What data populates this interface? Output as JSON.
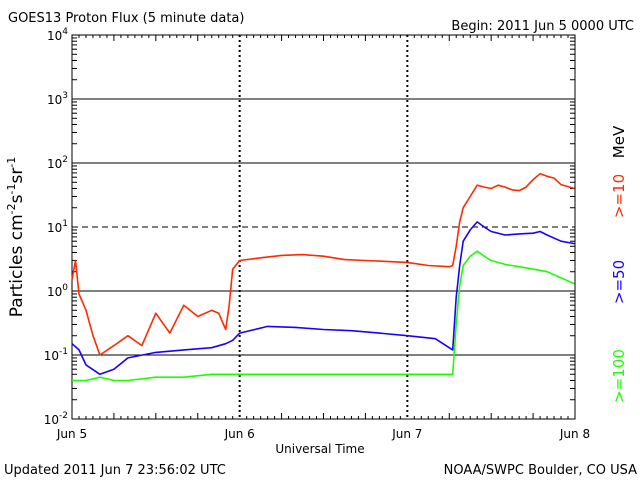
{
  "header": {
    "title": "GOES13 Proton Flux (5 minute data)",
    "begin": "Begin: 2011 Jun 5 0000 UTC"
  },
  "footer": {
    "updated": "Updated 2011 Jun  7 23:56:02 UTC",
    "credit": "NOAA/SWPC Boulder, CO USA"
  },
  "energy_labels": {
    "unit": "MeV",
    "ch10": ">=10",
    "ch50": ">=50",
    "ch100": ">=100"
  },
  "colors": {
    "ch10": "#ff2a00",
    "ch50": "#1c00ff",
    "ch100": "#1cff00",
    "grid": "#000000",
    "threshold": "#000000"
  },
  "chart_data": {
    "type": "line",
    "title": "GOES13 Proton Flux (5 minute data)",
    "xlabel": "Universal Time",
    "ylabel": "Particles cm-2s-1sr-1",
    "yscale": "log",
    "ylim": [
      0.01,
      10000
    ],
    "xlim_days": [
      0,
      3
    ],
    "x_ticks": [
      "Jun 5",
      "Jun 6",
      "Jun 7",
      "Jun 8"
    ],
    "y_ticks": [
      "10-2",
      "10-1",
      "100",
      "101",
      "102",
      "103",
      "104"
    ],
    "threshold": 10,
    "grid": true,
    "series": [
      {
        "name": ">=10 MeV",
        "color_key": "ch10",
        "x": [
          "Jun 5 00:00",
          "Jun 5 00:30",
          "Jun 5 01:00",
          "Jun 5 02:00",
          "Jun 5 03:00",
          "Jun 5 04:00",
          "Jun 5 06:00",
          "Jun 5 08:00",
          "Jun 5 10:00",
          "Jun 5 12:00",
          "Jun 5 14:00",
          "Jun 5 16:00",
          "Jun 5 18:00",
          "Jun 5 20:00",
          "Jun 5 21:00",
          "Jun 5 22:00",
          "Jun 5 22:30",
          "Jun 5 23:00",
          "Jun 6 00:00",
          "Jun 6 03:00",
          "Jun 6 06:00",
          "Jun 6 09:00",
          "Jun 6 12:00",
          "Jun 6 15:00",
          "Jun 6 18:00",
          "Jun 6 21:00",
          "Jun 7 00:00",
          "Jun 7 03:00",
          "Jun 7 06:00",
          "Jun 7 06:30",
          "Jun 7 07:00",
          "Jun 7 07:30",
          "Jun 7 08:00",
          "Jun 7 09:00",
          "Jun 7 10:00",
          "Jun 7 11:00",
          "Jun 7 12:00",
          "Jun 7 13:00",
          "Jun 7 14:00",
          "Jun 7 15:00",
          "Jun 7 16:00",
          "Jun 7 17:00",
          "Jun 7 18:00",
          "Jun 7 19:00",
          "Jun 7 20:00",
          "Jun 7 21:00",
          "Jun 7 22:00",
          "Jun 7 23:55"
        ],
        "values": [
          1.5,
          3.0,
          0.9,
          0.5,
          0.2,
          0.1,
          0.14,
          0.2,
          0.14,
          0.45,
          0.22,
          0.6,
          0.4,
          0.5,
          0.45,
          0.25,
          0.6,
          2.2,
          3.0,
          3.3,
          3.6,
          3.7,
          3.5,
          3.1,
          3.0,
          2.9,
          2.8,
          2.5,
          2.4,
          2.5,
          5.0,
          12.0,
          20.0,
          30.0,
          45.0,
          42.0,
          40.0,
          45.0,
          42.0,
          38.0,
          37.0,
          42.0,
          55.0,
          68.0,
          62.0,
          58.0,
          46.0,
          40.0
        ]
      },
      {
        "name": ">=50 MeV",
        "color_key": "ch50",
        "x": [
          "Jun 5 00:00",
          "Jun 5 01:00",
          "Jun 5 02:00",
          "Jun 5 04:00",
          "Jun 5 06:00",
          "Jun 5 08:00",
          "Jun 5 12:00",
          "Jun 5 16:00",
          "Jun 5 20:00",
          "Jun 5 22:00",
          "Jun 5 23:00",
          "Jun 6 00:00",
          "Jun 6 04:00",
          "Jun 6 08:00",
          "Jun 6 12:00",
          "Jun 6 16:00",
          "Jun 6 20:00",
          "Jun 7 00:00",
          "Jun 7 04:00",
          "Jun 7 06:30",
          "Jun 7 07:00",
          "Jun 7 07:30",
          "Jun 7 08:00",
          "Jun 7 09:00",
          "Jun 7 10:00",
          "Jun 7 11:00",
          "Jun 7 12:00",
          "Jun 7 14:00",
          "Jun 7 16:00",
          "Jun 7 18:00",
          "Jun 7 19:00",
          "Jun 7 20:00",
          "Jun 7 22:00",
          "Jun 7 23:55"
        ],
        "values": [
          0.15,
          0.12,
          0.07,
          0.05,
          0.06,
          0.09,
          0.11,
          0.12,
          0.13,
          0.15,
          0.17,
          0.22,
          0.28,
          0.27,
          0.25,
          0.24,
          0.22,
          0.2,
          0.18,
          0.12,
          0.8,
          2.5,
          6.0,
          9.0,
          12.0,
          10.0,
          8.5,
          7.5,
          7.8,
          8.0,
          8.5,
          7.5,
          6.0,
          5.5
        ]
      },
      {
        "name": ">=100 MeV",
        "color_key": "ch100",
        "x": [
          "Jun 5 00:00",
          "Jun 5 02:00",
          "Jun 5 04:00",
          "Jun 5 06:00",
          "Jun 5 08:00",
          "Jun 5 12:00",
          "Jun 5 16:00",
          "Jun 5 20:00",
          "Jun 6 00:00",
          "Jun 6 06:00",
          "Jun 6 12:00",
          "Jun 6 18:00",
          "Jun 7 00:00",
          "Jun 7 04:00",
          "Jun 7 06:30",
          "Jun 7 07:00",
          "Jun 7 07:30",
          "Jun 7 08:00",
          "Jun 7 09:00",
          "Jun 7 10:00",
          "Jun 7 11:00",
          "Jun 7 12:00",
          "Jun 7 14:00",
          "Jun 7 16:00",
          "Jun 7 18:00",
          "Jun 7 20:00",
          "Jun 7 22:00",
          "Jun 7 23:55"
        ],
        "values": [
          0.04,
          0.04,
          0.045,
          0.04,
          0.04,
          0.045,
          0.045,
          0.05,
          0.05,
          0.05,
          0.05,
          0.05,
          0.05,
          0.05,
          0.05,
          0.3,
          1.2,
          2.5,
          3.5,
          4.2,
          3.5,
          3.0,
          2.6,
          2.4,
          2.2,
          2.0,
          1.6,
          1.3
        ]
      }
    ]
  }
}
